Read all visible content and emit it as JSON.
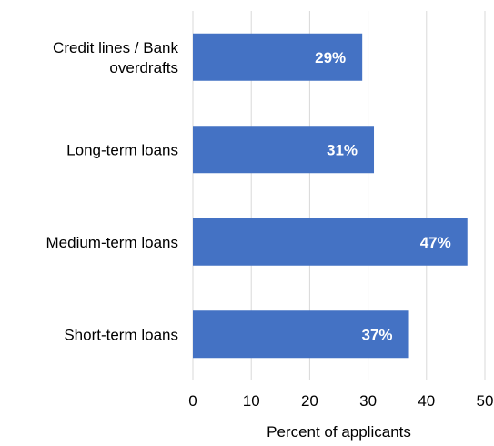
{
  "chart_data": {
    "type": "bar",
    "orientation": "horizontal",
    "categories": [
      "Credit lines / Bank overdrafts",
      "Long-term loans",
      "Medium-term loans",
      "Short-term loans"
    ],
    "category_label_lines": [
      [
        "Credit lines / Bank",
        "overdrafts"
      ],
      [
        "Long-term loans"
      ],
      [
        "Medium-term loans"
      ],
      [
        "Short-term loans"
      ]
    ],
    "values": [
      29,
      31,
      47,
      37
    ],
    "data_labels": [
      "29%",
      "31%",
      "47%",
      "37%"
    ],
    "xlabel": "Percent of applicants",
    "ylabel": "",
    "xlim": [
      0,
      50
    ],
    "x_ticks": [
      0,
      10,
      20,
      30,
      40,
      50
    ],
    "tick_labels": [
      "0",
      "10",
      "20",
      "30",
      "40",
      "50"
    ],
    "grid": "vertical",
    "legend": "none",
    "colors": {
      "bar": "#4472C4",
      "gridline": "#D9D9D9",
      "data_label": "#FFFFFF",
      "text": "#000000"
    }
  }
}
